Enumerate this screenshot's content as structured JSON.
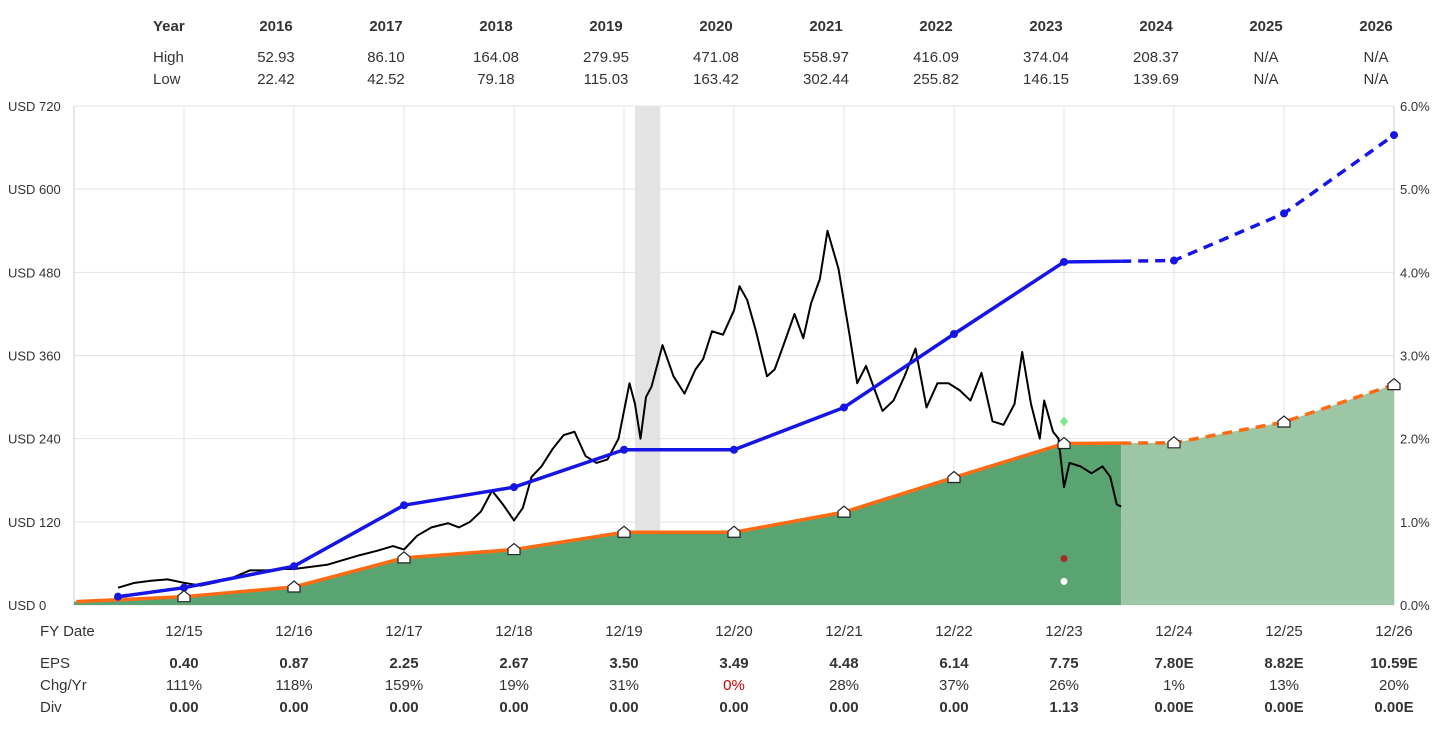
{
  "colors": {
    "price_line": "#000000",
    "eps_line": "#ff6a13",
    "eps_fill_actual": "#5aa472",
    "eps_fill_estimate": "#9dc6a5",
    "growth_line": "#1515e6",
    "recession_band": "#e3e3e3",
    "grid": "#e3e3e3",
    "negative_text": "#cc0000",
    "marker_green": "#7ee88b",
    "marker_red": "#a52a2a",
    "marker_white": "#ffffff"
  },
  "top_table": {
    "row_labels": {
      "year": "Year",
      "high": "High",
      "low": "Low"
    },
    "years": [
      "2016",
      "2017",
      "2018",
      "2019",
      "2020",
      "2021",
      "2022",
      "2023",
      "2024",
      "2025",
      "2026"
    ],
    "high": [
      "52.93",
      "86.10",
      "164.08",
      "279.95",
      "471.08",
      "558.97",
      "416.09",
      "374.04",
      "208.37",
      "N/A",
      "N/A"
    ],
    "low": [
      "22.42",
      "42.52",
      "79.18",
      "115.03",
      "163.42",
      "302.44",
      "255.82",
      "146.15",
      "139.69",
      "N/A",
      "N/A"
    ]
  },
  "bottom_table": {
    "row_labels": {
      "fy": "FY Date",
      "eps": "EPS",
      "chg": "Chg/Yr",
      "div": "Div"
    },
    "fy_dates": [
      "12/15",
      "12/16",
      "12/17",
      "12/18",
      "12/19",
      "12/20",
      "12/21",
      "12/22",
      "12/23",
      "12/24",
      "12/25",
      "12/26"
    ],
    "eps": [
      "0.40",
      "0.87",
      "2.25",
      "2.67",
      "3.50",
      "3.49",
      "4.48",
      "6.14",
      "7.75",
      "7.80E",
      "8.82E",
      "10.59E"
    ],
    "chg": [
      "111%",
      "118%",
      "159%",
      "19%",
      "31%",
      "0%",
      "28%",
      "37%",
      "26%",
      "1%",
      "13%",
      "20%"
    ],
    "chg_negative_flags": [
      false,
      false,
      false,
      false,
      false,
      true,
      false,
      false,
      false,
      false,
      false,
      false
    ],
    "div": [
      "0.00",
      "0.00",
      "0.00",
      "0.00",
      "0.00",
      "0.00",
      "0.00",
      "0.00",
      "1.13",
      "0.00E",
      "0.00E",
      "0.00E"
    ]
  },
  "chart_data": {
    "type": "line",
    "left_axis": {
      "ticks": [
        "USD 720",
        "USD 600",
        "USD 480",
        "USD 360",
        "USD 240",
        "USD 120",
        "USD 0"
      ],
      "min": 0,
      "max": 720
    },
    "right_axis": {
      "ticks": [
        "6.0%",
        "5.0%",
        "4.0%",
        "3.0%",
        "2.0%",
        "1.0%",
        "0.0%"
      ],
      "min": 0,
      "max": 6
    },
    "x_categories": [
      "12/15",
      "12/16",
      "12/17",
      "12/18",
      "12/19",
      "12/20",
      "12/21",
      "12/22",
      "12/23",
      "12/24",
      "12/25",
      "12/26"
    ],
    "grid": true,
    "recession_band": {
      "from": 2019.1,
      "to": 2019.33
    },
    "estimate_start": 2023.52,
    "eps_valuation_line": {
      "x": [
        2015,
        2016,
        2017,
        2018,
        2019,
        2020,
        2021,
        2022,
        2023,
        2024,
        2025,
        2026
      ],
      "y": [
        12,
        26,
        68,
        80,
        105,
        105,
        134,
        184,
        233,
        234,
        264,
        318
      ],
      "estimated_from_index": 9
    },
    "growth_line": {
      "x": [
        2014.4,
        2015,
        2016,
        2017,
        2018,
        2019,
        2020,
        2021,
        2022,
        2023,
        2024,
        2025,
        2026.2
      ],
      "y": [
        12,
        25,
        56,
        144,
        170,
        224,
        224,
        285,
        391,
        495,
        497,
        565,
        678
      ],
      "estimated_from_index": 10
    },
    "price_series": {
      "x": [
        2014.4,
        2014.55,
        2014.7,
        2014.85,
        2015.0,
        2015.15,
        2015.3,
        2015.45,
        2015.6,
        2015.75,
        2015.9,
        2016.0,
        2016.15,
        2016.3,
        2016.45,
        2016.6,
        2016.75,
        2016.9,
        2017.0,
        2017.12,
        2017.25,
        2017.4,
        2017.5,
        2017.6,
        2017.7,
        2017.8,
        2017.9,
        2018.0,
        2018.08,
        2018.16,
        2018.25,
        2018.35,
        2018.45,
        2018.55,
        2018.65,
        2018.75,
        2018.85,
        2018.95,
        2019.0,
        2019.05,
        2019.1,
        2019.15,
        2019.2,
        2019.25,
        2019.3,
        2019.35,
        2019.45,
        2019.55,
        2019.65,
        2019.72,
        2019.8,
        2019.9,
        2020.0,
        2020.05,
        2020.12,
        2020.2,
        2020.3,
        2020.37,
        2020.45,
        2020.55,
        2020.63,
        2020.7,
        2020.78,
        2020.85,
        2020.95,
        2021.05,
        2021.12,
        2021.2,
        2021.28,
        2021.35,
        2021.45,
        2021.55,
        2021.65,
        2021.75,
        2021.85,
        2021.95,
        2022.05,
        2022.15,
        2022.25,
        2022.35,
        2022.45,
        2022.55,
        2022.62,
        2022.7,
        2022.78,
        2022.82,
        2022.9,
        2022.95,
        2023.0,
        2023.05,
        2023.15,
        2023.25,
        2023.35,
        2023.42,
        2023.48,
        2023.52
      ],
      "y": [
        25,
        32,
        35,
        37,
        32,
        28,
        33,
        40,
        50,
        50,
        52,
        52,
        55,
        58,
        65,
        72,
        78,
        85,
        80,
        100,
        112,
        118,
        112,
        120,
        135,
        165,
        145,
        122,
        140,
        185,
        200,
        225,
        245,
        250,
        215,
        205,
        210,
        240,
        280,
        320,
        290,
        240,
        300,
        315,
        345,
        375,
        330,
        305,
        340,
        355,
        395,
        390,
        425,
        460,
        440,
        395,
        330,
        340,
        375,
        420,
        385,
        435,
        470,
        540,
        485,
        390,
        320,
        345,
        310,
        280,
        295,
        330,
        370,
        285,
        320,
        320,
        310,
        295,
        335,
        265,
        260,
        290,
        365,
        290,
        240,
        295,
        250,
        240,
        170,
        205,
        200,
        190,
        200,
        185,
        145,
        142
      ]
    },
    "markers": [
      {
        "x": 2023,
        "y": 265,
        "kind": "diamond",
        "color_key": "marker_green"
      },
      {
        "x": 2023,
        "y": 67,
        "kind": "dot",
        "color_key": "marker_red"
      },
      {
        "x": 2023,
        "y": 34,
        "kind": "dot",
        "color_key": "marker_white"
      }
    ]
  }
}
